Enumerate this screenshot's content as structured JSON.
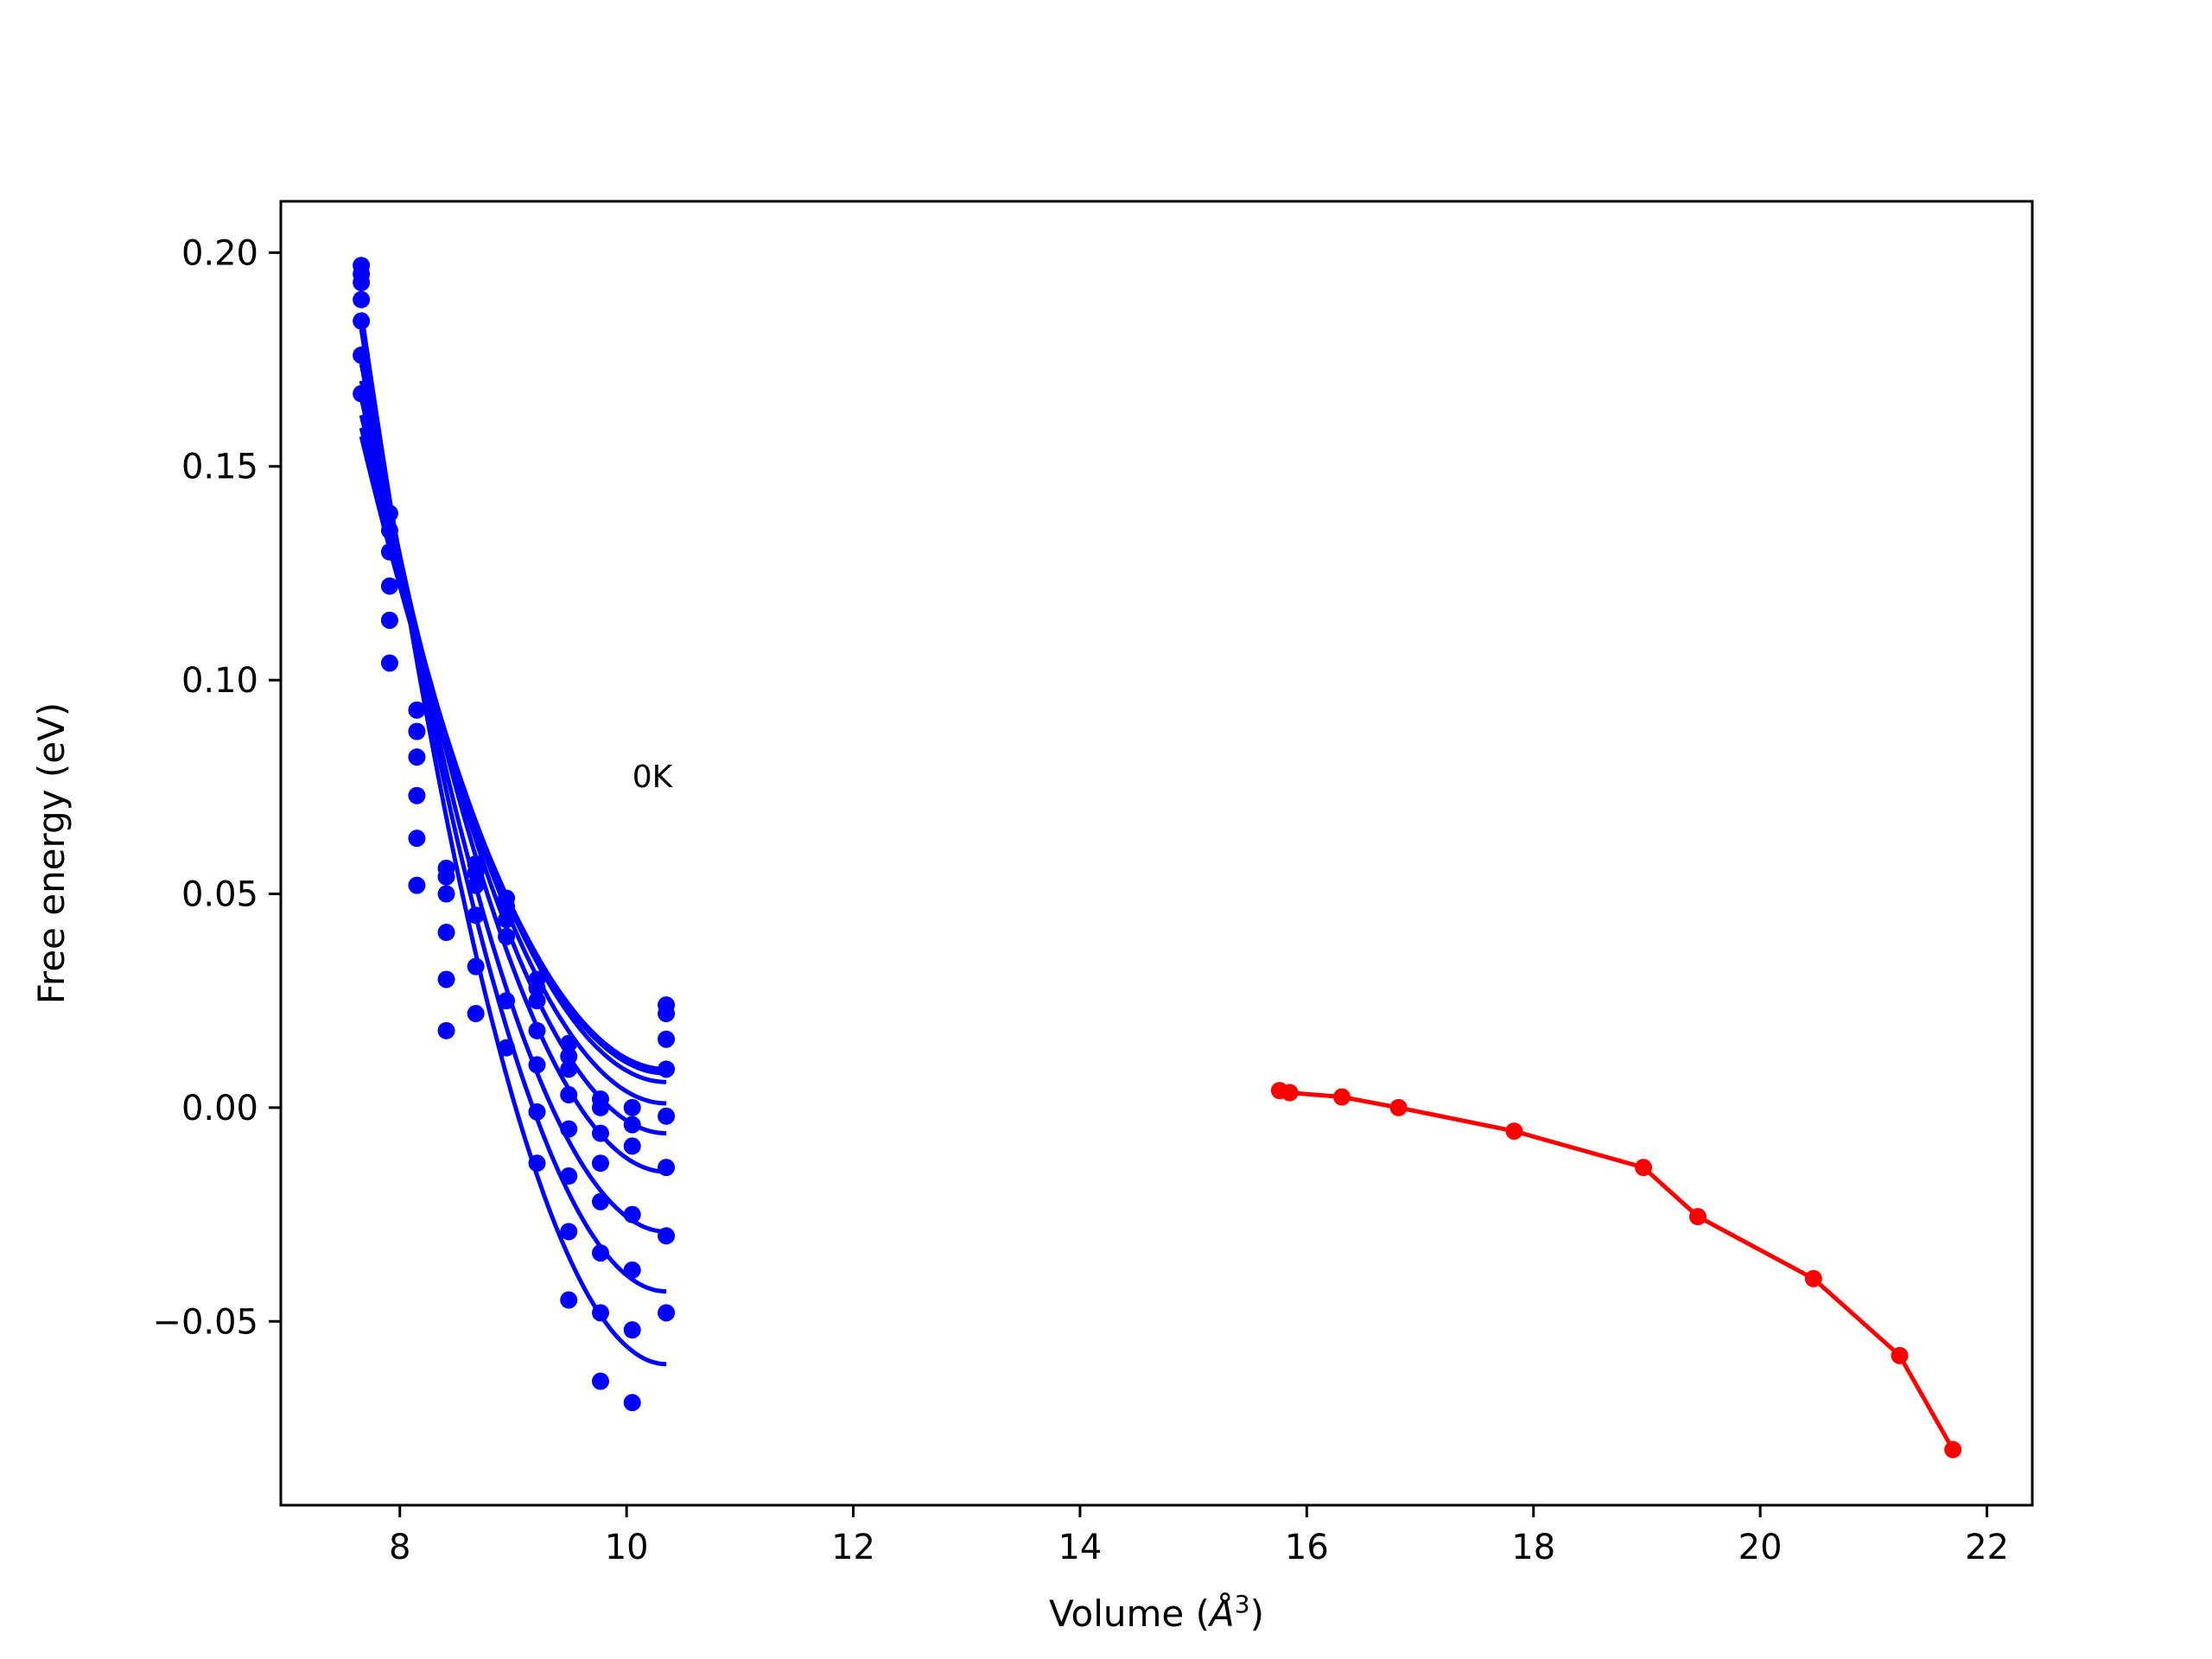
{
  "chart_data": {
    "type": "scatter",
    "xlabel": "Volume (",
    "xlabel_sym": "Å",
    "xlabel_exp": "3",
    "xlabel_end": ")",
    "ylabel": "Free energy (eV)",
    "annotation": {
      "text": "0K",
      "x": 10.05,
      "y": 0.075
    },
    "xlim": [
      6.95,
      22.4
    ],
    "ylim": [
      -0.093,
      0.212
    ],
    "x_ticks": [
      8,
      10,
      12,
      14,
      16,
      18,
      20,
      22
    ],
    "x_tick_labels": [
      "8",
      "10",
      "12",
      "14",
      "16",
      "18",
      "20",
      "22"
    ],
    "y_ticks": [
      -0.05,
      0.0,
      0.05,
      0.1,
      0.15,
      0.2
    ],
    "y_tick_labels": [
      "−0.05",
      "0.00",
      "0.05",
      "0.10",
      "0.15",
      "0.20"
    ],
    "colors": {
      "blue": "#0000ff",
      "red": "#ff0000"
    },
    "blue_volumes": [
      7.66,
      7.91,
      8.15,
      8.41,
      8.67,
      8.94,
      9.21,
      9.49,
      9.77,
      10.05,
      10.35
    ],
    "blue_points_by_volume": [
      [
        0.197,
        0.195,
        0.193,
        0.189,
        0.184,
        0.176,
        0.167
      ],
      [
        0.139,
        0.135,
        0.13,
        0.122,
        0.114,
        0.104
      ],
      [
        0.093,
        0.088,
        0.082,
        0.073,
        0.063,
        0.052
      ],
      [
        0.056,
        0.054,
        0.05,
        0.041,
        0.03,
        0.018
      ],
      [
        0.057,
        0.055,
        0.052,
        0.045,
        0.033,
        0.022
      ],
      [
        0.049,
        0.047,
        0.044,
        0.04,
        0.025,
        0.014
      ],
      [
        0.03,
        0.028,
        0.025,
        0.018,
        0.01,
        -0.001,
        -0.013
      ],
      [
        0.015,
        0.012,
        0.009,
        0.003,
        -0.005,
        -0.016,
        -0.029,
        -0.045
      ],
      [
        0.002,
        0.0,
        -0.006,
        -0.013,
        -0.022,
        -0.034,
        -0.048,
        -0.064
      ],
      [
        0.0,
        -0.004,
        -0.009,
        -0.025,
        -0.038,
        -0.052,
        -0.069
      ],
      [
        0.024,
        0.022,
        0.016,
        0.009,
        -0.002,
        -0.014,
        -0.03,
        -0.048
      ]
    ],
    "blue_fit_curves": [
      {
        "v0": 10.35,
        "e_left": 0.157,
        "e_min": 0.009
      },
      {
        "v0": 10.35,
        "e_left": 0.159,
        "e_min": 0.008
      },
      {
        "v0": 10.35,
        "e_left": 0.162,
        "e_min": 0.006
      },
      {
        "v0": 10.35,
        "e_left": 0.166,
        "e_min": 0.001
      },
      {
        "v0": 10.35,
        "e_left": 0.17,
        "e_min": -0.006
      },
      {
        "v0": 10.35,
        "e_left": 0.174,
        "e_min": -0.015
      },
      {
        "v0": 10.35,
        "e_left": 0.178,
        "e_min": -0.029
      },
      {
        "v0": 10.35,
        "e_left": 0.182,
        "e_min": -0.043
      },
      {
        "v0": 10.35,
        "e_left": 0.186,
        "e_min": -0.06
      }
    ],
    "series": [
      {
        "x": [
          15.76,
          15.85,
          16.31,
          16.81,
          17.83,
          18.97,
          19.45,
          20.47,
          21.23,
          21.7
        ],
        "y": [
          0.004,
          0.0035,
          0.0025,
          0.0,
          -0.0055,
          -0.014,
          -0.0255,
          -0.04,
          -0.058,
          -0.08
        ]
      }
    ]
  }
}
